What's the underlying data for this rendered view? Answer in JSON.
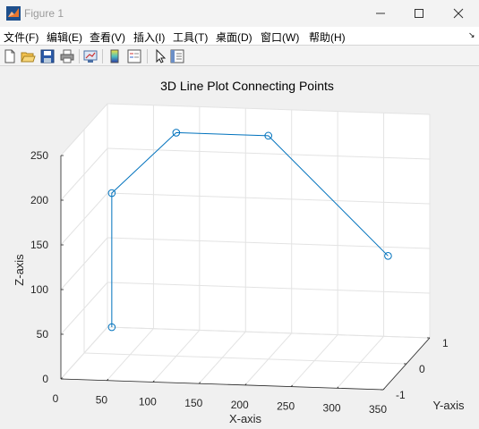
{
  "window": {
    "title": "Figure 1"
  },
  "menu": [
    "文件(F)",
    "编辑(E)",
    "查看(V)",
    "插入(I)",
    "工具(T)",
    "桌面(D)",
    "窗口(W)",
    "帮助(H)"
  ],
  "toolbar": {
    "buttons": [
      "new-figure-icon",
      "open-file-icon",
      "save-icon",
      "print-icon",
      "link-plot-icon",
      "insert-colorbar-icon",
      "insert-legend-icon",
      "edit-plot-icon",
      "property-inspector-icon"
    ]
  },
  "colors": {
    "line": "#0072bd",
    "grid": "#e3e3e3",
    "axis": "#262626",
    "accent": "#0072bd"
  },
  "chart_data": {
    "type": "line",
    "subtype": "3d-line-with-circle-markers",
    "title": "3D Line Plot Connecting Points",
    "xlabel": "X-axis",
    "ylabel": "Y-axis",
    "zlabel": "Z-axis",
    "xlim": [
      0,
      350
    ],
    "ylim": [
      -1,
      1
    ],
    "zlim": [
      0,
      250
    ],
    "xticks": [
      "0",
      "50",
      "100",
      "150",
      "200",
      "250",
      "300",
      "350"
    ],
    "yticks": [
      "-1",
      "0",
      "1"
    ],
    "zticks": [
      "0",
      "50",
      "100",
      "150",
      "200",
      "250"
    ],
    "grid": true,
    "series": [
      {
        "points": [
          {
            "x": 30,
            "y": 0,
            "z": 30
          },
          {
            "x": 30,
            "y": 0,
            "z": 180
          },
          {
            "x": 100,
            "y": 0,
            "z": 250
          },
          {
            "x": 200,
            "y": 0,
            "z": 250
          },
          {
            "x": 330,
            "y": 0,
            "z": 120
          }
        ]
      }
    ]
  }
}
